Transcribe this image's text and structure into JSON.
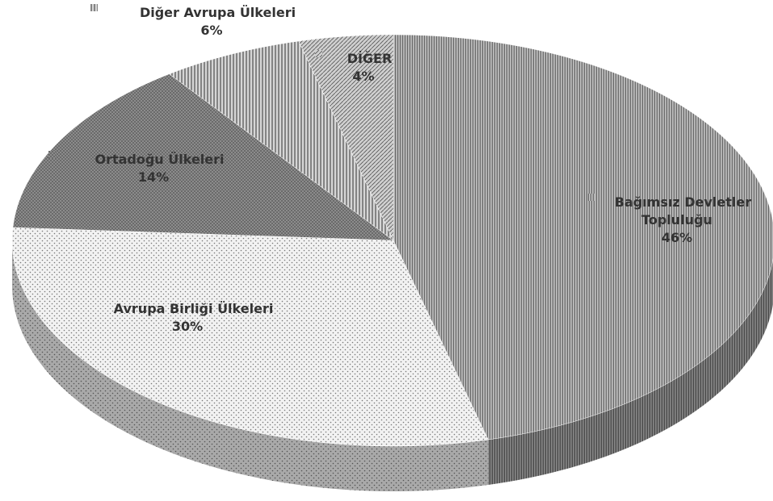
{
  "chart_data": {
    "type": "pie",
    "categories": [
      "Bağımsız Devletler Topluluğu",
      "Avrupa Birliği Ülkeleri",
      "Ortadoğu Ülkeleri",
      "Diğer Avrupa Ülkeleri",
      "DİĞER"
    ],
    "values": [
      46,
      30,
      14,
      6,
      4
    ],
    "value_labels": [
      "46%",
      "30%",
      "14%",
      "6%",
      "4%"
    ],
    "colors": [
      "#b4b4b4",
      "#f2f2f2",
      "#8c8c8c",
      "#d6d6d6",
      "#cfcfcf"
    ]
  }
}
